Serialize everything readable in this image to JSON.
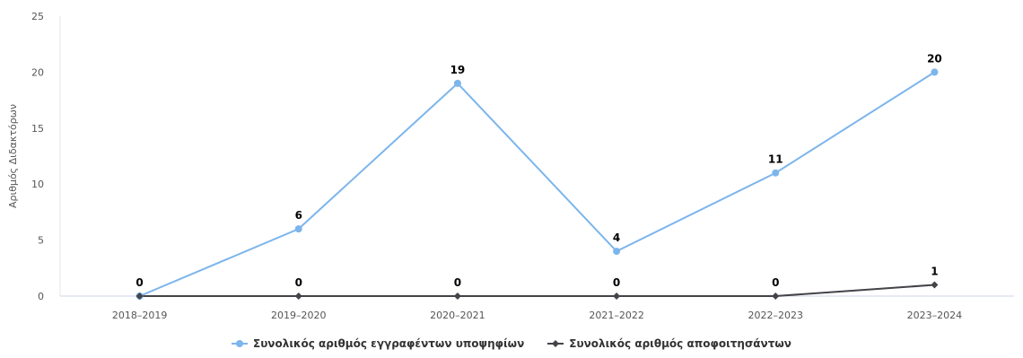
{
  "chart_data": {
    "type": "line",
    "categories": [
      "2018–2019",
      "2019–2020",
      "2020–2021",
      "2021–2022",
      "2022–2023",
      "2023–2024"
    ],
    "ylabel": "Αριθμός Διδακτόρων",
    "ylim": [
      0,
      25
    ],
    "yticks": [
      0,
      5,
      10,
      15,
      20,
      25
    ],
    "grid": false,
    "legend_position": "bottom",
    "series": [
      {
        "name": "Συνολικός αριθμός εγγραφέντων υποψηφίων",
        "values": [
          0,
          6,
          19,
          4,
          11,
          20
        ],
        "color": "#7cb5ec",
        "marker": "circle"
      },
      {
        "name": "Συνολικός αριθμός αποφοιτησάντων",
        "values": [
          0,
          0,
          0,
          0,
          0,
          1
        ],
        "color": "#434348",
        "marker": "diamond"
      }
    ]
  }
}
